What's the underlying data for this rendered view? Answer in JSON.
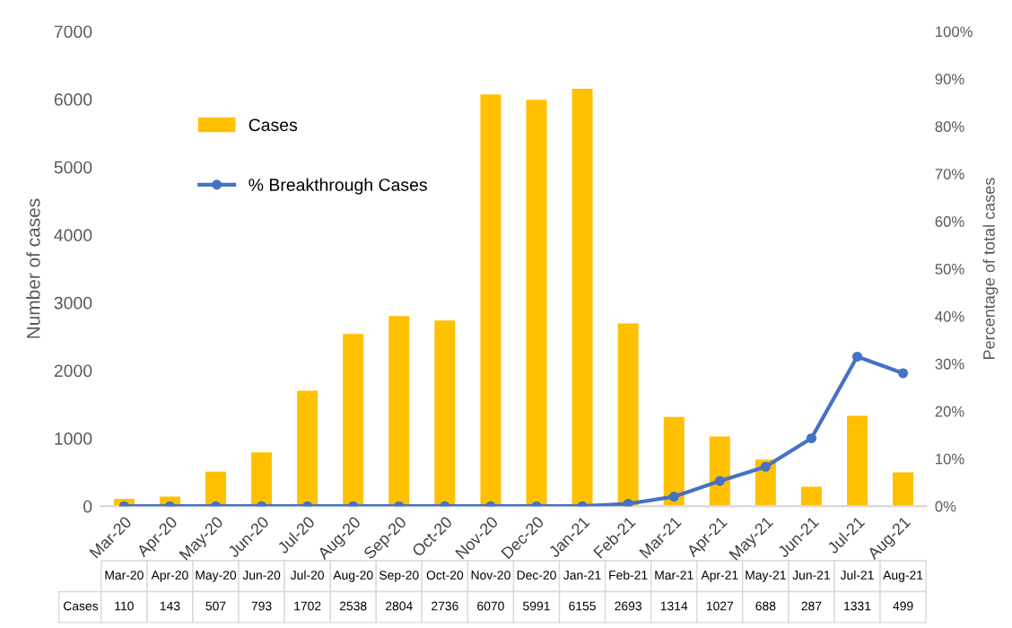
{
  "chart_data": {
    "type": "bar",
    "categories": [
      "Mar-20",
      "Apr-20",
      "May-20",
      "Jun-20",
      "Jul-20",
      "Aug-20",
      "Sep-20",
      "Oct-20",
      "Nov-20",
      "Dec-20",
      "Jan-21",
      "Feb-21",
      "Mar-21",
      "Apr-21",
      "May-21",
      "Jun-21",
      "Jul-21",
      "Aug-21"
    ],
    "series": [
      {
        "name": "Cases",
        "color": "#ffc000",
        "values": [
          110,
          143,
          507,
          793,
          1702,
          2538,
          2804,
          2736,
          6070,
          5991,
          6155,
          2693,
          1314,
          1027,
          688,
          287,
          1331,
          499
        ],
        "value_labels": [
          "110",
          "143",
          "507",
          "793",
          "1702",
          "2538",
          "2804",
          "2736",
          "6070",
          "5991",
          "6155",
          "2693",
          "1314",
          "1027",
          "688",
          "287",
          "1331",
          "499"
        ]
      },
      {
        "name": "% Breakthrough Cases",
        "type": "line",
        "axis": "y2",
        "color": "#4472c4",
        "marker": "circle",
        "values": [
          0,
          0,
          0,
          0,
          0,
          0,
          0,
          0,
          0,
          0,
          0,
          0.5,
          2,
          5.3,
          8.3,
          14.3,
          31.5,
          28
        ]
      }
    ],
    "ylabel": "Number of cases",
    "y2label": "Percentage of total cases",
    "ylim": [
      0,
      7000
    ],
    "yticks": [
      0,
      1000,
      2000,
      3000,
      4000,
      5000,
      6000,
      7000
    ],
    "y2lim": [
      0,
      100
    ],
    "y2ticks": [
      {
        "value": 0,
        "label": "0%"
      },
      {
        "value": 10,
        "label": "10%"
      },
      {
        "value": 20,
        "label": "20%"
      },
      {
        "value": 30,
        "label": "30%"
      },
      {
        "value": 40,
        "label": "40%"
      },
      {
        "value": 50,
        "label": "50%"
      },
      {
        "value": 60,
        "label": "60%"
      },
      {
        "value": 70,
        "label": "70%"
      },
      {
        "value": 80,
        "label": "80%"
      },
      {
        "value": 90,
        "label": "90%"
      },
      {
        "value": 100,
        "label": "100%"
      }
    ],
    "legend": "top left",
    "grid": false
  }
}
